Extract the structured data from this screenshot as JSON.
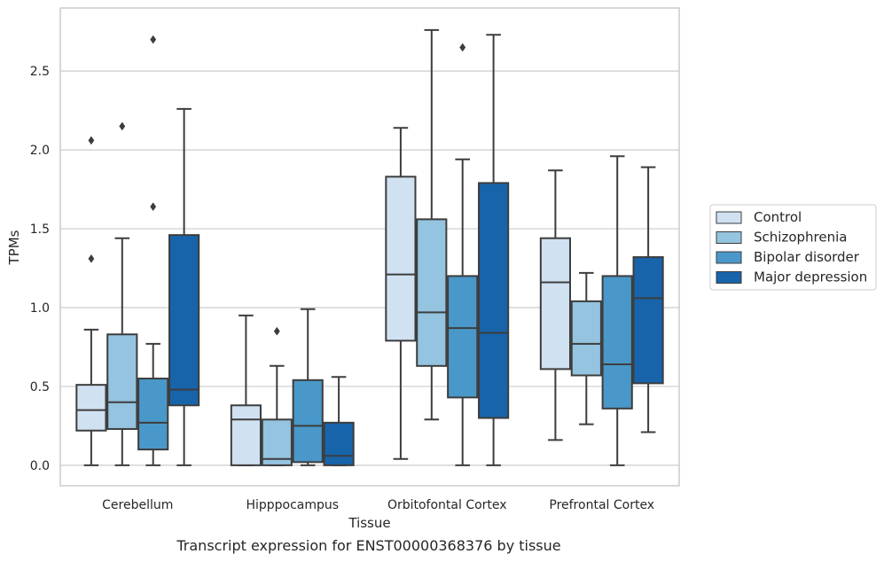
{
  "caption": "Transcript expression for ENST00000368376 by tissue",
  "chart_data": {
    "type": "boxplot",
    "xlabel": "Tissue",
    "ylabel": "TPMs",
    "ylim": [
      -0.13,
      2.9
    ],
    "yticks": [
      0.0,
      0.5,
      1.0,
      1.5,
      2.0,
      2.5
    ],
    "ytick_labels": [
      "0.0",
      "0.5",
      "1.0",
      "1.5",
      "2.0",
      "2.5"
    ],
    "grid": true,
    "legend_position": "right",
    "categories": [
      "Cerebellum",
      "Hipppocampus",
      "Orbitofontal Cortex",
      "Prefrontal Cortex"
    ],
    "series": [
      {
        "name": "Control",
        "color": "#d0e1f2",
        "boxes": [
          {
            "whisker_low": 0.0,
            "q1": 0.22,
            "median": 0.35,
            "q3": 0.51,
            "whisker_high": 0.86,
            "outliers": [
              1.31,
              2.06
            ]
          },
          {
            "whisker_low": 0.0,
            "q1": 0.0,
            "median": 0.29,
            "q3": 0.38,
            "whisker_high": 0.95,
            "outliers": []
          },
          {
            "whisker_low": 0.04,
            "q1": 0.79,
            "median": 1.21,
            "q3": 1.83,
            "whisker_high": 2.14,
            "outliers": []
          },
          {
            "whisker_low": 0.16,
            "q1": 0.61,
            "median": 1.16,
            "q3": 1.44,
            "whisker_high": 1.87,
            "outliers": []
          }
        ]
      },
      {
        "name": "Schizophrenia",
        "color": "#94c4df",
        "boxes": [
          {
            "whisker_low": 0.0,
            "q1": 0.23,
            "median": 0.4,
            "q3": 0.83,
            "whisker_high": 1.44,
            "outliers": [
              2.15
            ]
          },
          {
            "whisker_low": 0.0,
            "q1": 0.0,
            "median": 0.04,
            "q3": 0.29,
            "whisker_high": 0.63,
            "outliers": [
              0.85
            ]
          },
          {
            "whisker_low": 0.29,
            "q1": 0.63,
            "median": 0.97,
            "q3": 1.56,
            "whisker_high": 2.76,
            "outliers": []
          },
          {
            "whisker_low": 0.26,
            "q1": 0.57,
            "median": 0.77,
            "q3": 1.04,
            "whisker_high": 1.22,
            "outliers": []
          }
        ]
      },
      {
        "name": "Bipolar disorder",
        "color": "#4a98c9",
        "boxes": [
          {
            "whisker_low": 0.0,
            "q1": 0.1,
            "median": 0.27,
            "q3": 0.55,
            "whisker_high": 0.77,
            "outliers": [
              1.64,
              2.7
            ]
          },
          {
            "whisker_low": 0.0,
            "q1": 0.02,
            "median": 0.25,
            "q3": 0.54,
            "whisker_high": 0.99,
            "outliers": []
          },
          {
            "whisker_low": 0.0,
            "q1": 0.43,
            "median": 0.87,
            "q3": 1.2,
            "whisker_high": 1.94,
            "outliers": [
              2.65
            ]
          },
          {
            "whisker_low": 0.0,
            "q1": 0.36,
            "median": 0.64,
            "q3": 1.2,
            "whisker_high": 1.96,
            "outliers": []
          }
        ]
      },
      {
        "name": "Major depression",
        "color": "#1764ab",
        "boxes": [
          {
            "whisker_low": 0.0,
            "q1": 0.38,
            "median": 0.48,
            "q3": 1.46,
            "whisker_high": 2.26,
            "outliers": []
          },
          {
            "whisker_low": 0.0,
            "q1": 0.0,
            "median": 0.06,
            "q3": 0.27,
            "whisker_high": 0.56,
            "outliers": []
          },
          {
            "whisker_low": 0.0,
            "q1": 0.3,
            "median": 0.84,
            "q3": 1.79,
            "whisker_high": 2.73,
            "outliers": []
          },
          {
            "whisker_low": 0.21,
            "q1": 0.52,
            "median": 1.06,
            "q3": 1.32,
            "whisker_high": 1.89,
            "outliers": []
          }
        ]
      }
    ]
  }
}
